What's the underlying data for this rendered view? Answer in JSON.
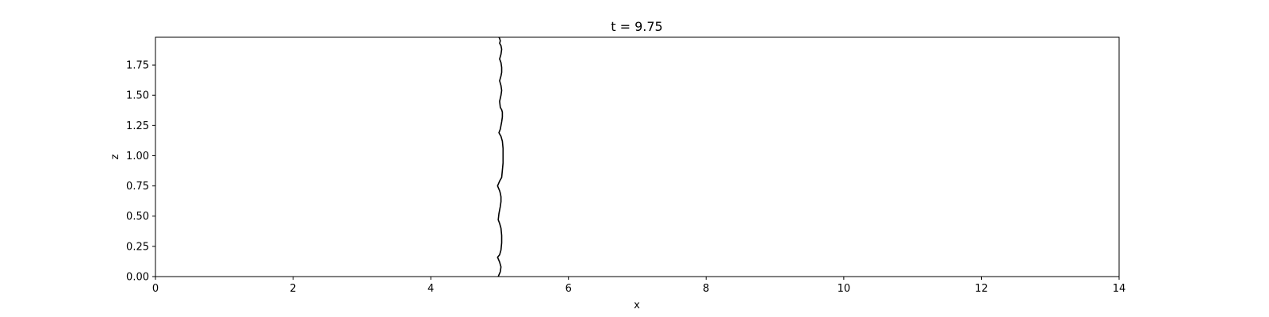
{
  "chart_data": {
    "type": "line",
    "title": "t = 9.75",
    "xlabel": "x",
    "ylabel": "z",
    "xlim": [
      0,
      14
    ],
    "ylim": [
      0,
      1.98
    ],
    "xticks": [
      0,
      2,
      4,
      6,
      8,
      10,
      12,
      14
    ],
    "xtick_labels": [
      "0",
      "2",
      "4",
      "6",
      "8",
      "10",
      "12",
      "14"
    ],
    "yticks": [
      0,
      0.25,
      0.5,
      0.75,
      1.0,
      1.25,
      1.5,
      1.75
    ],
    "ytick_labels": [
      "0.00",
      "0.25",
      "0.50",
      "0.75",
      "1.00",
      "1.25",
      "1.50",
      "1.75"
    ],
    "grid": false,
    "series": [
      {
        "color": "#000000",
        "x": [
          4.98,
          5.01,
          5.02,
          5.0,
          4.97,
          5.0,
          5.02,
          5.03,
          5.03,
          5.02,
          5.0,
          4.98,
          4.99,
          5.01,
          5.02,
          5.02,
          5.01,
          5.0,
          4.97,
          5.0,
          5.03,
          5.04,
          5.05,
          5.05,
          5.05,
          5.04,
          5.02,
          4.99,
          5.01,
          5.03,
          5.04,
          5.04,
          5.03,
          5.01,
          5.0,
          5.02,
          5.03,
          5.02,
          5.0,
          5.02,
          5.03,
          5.03,
          5.02,
          5.0,
          5.02,
          5.03,
          5.02,
          5.0,
          5.01,
          5.0,
          4.99
        ],
        "y": [
          0.0,
          0.04,
          0.08,
          0.12,
          0.16,
          0.18,
          0.22,
          0.28,
          0.34,
          0.4,
          0.44,
          0.47,
          0.52,
          0.58,
          0.62,
          0.66,
          0.69,
          0.71,
          0.75,
          0.79,
          0.82,
          0.88,
          0.94,
          1.0,
          1.06,
          1.12,
          1.16,
          1.19,
          1.22,
          1.28,
          1.32,
          1.36,
          1.38,
          1.4,
          1.45,
          1.5,
          1.54,
          1.58,
          1.62,
          1.66,
          1.69,
          1.73,
          1.77,
          1.8,
          1.84,
          1.88,
          1.91,
          1.93,
          1.95,
          1.97,
          1.98
        ]
      }
    ]
  }
}
